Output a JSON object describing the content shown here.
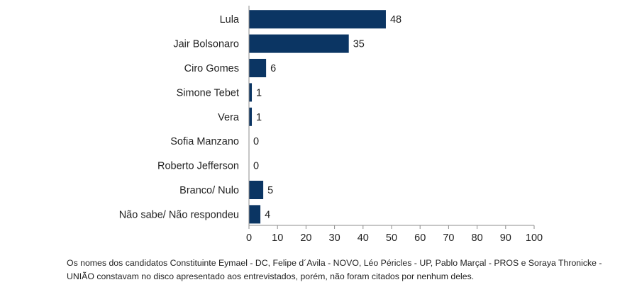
{
  "chart_data": {
    "type": "bar",
    "orientation": "horizontal",
    "categories": [
      "Lula",
      "Jair Bolsonaro",
      "Ciro Gomes",
      "Simone Tebet",
      "Vera",
      "Sofia Manzano",
      "Roberto Jefferson",
      "Branco/ Nulo",
      "Não sabe/ Não respondeu"
    ],
    "values": [
      48,
      35,
      6,
      1,
      1,
      0,
      0,
      5,
      4
    ],
    "xlim": [
      0,
      100
    ],
    "xticks": [
      0,
      10,
      20,
      30,
      40,
      50,
      60,
      70,
      80,
      90,
      100
    ],
    "grid": false,
    "bar_color": "#0b3563"
  },
  "footnote": "Os nomes dos candidatos Constituinte Eymael - DC, Felipe d´Avila - NOVO, Léo Péricles - UP, Pablo Marçal - PROS e Soraya Thronicke - UNIÃO constavam no disco apresentado aos entrevistados, porém, não foram citados por nenhum deles."
}
